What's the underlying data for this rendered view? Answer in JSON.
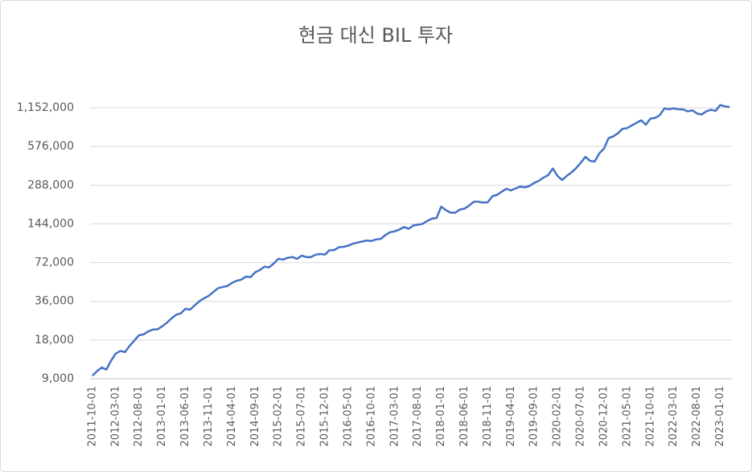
{
  "chart_data": {
    "type": "line",
    "title": "현금 대신 BIL 투자",
    "log_scale": true,
    "log_base": 2,
    "grid": true,
    "color": "#4472c4",
    "categories": [
      "2011-10-01",
      null,
      null,
      null,
      null,
      "2012-03-01",
      null,
      null,
      null,
      null,
      "2012-08-01",
      null,
      null,
      null,
      null,
      "2013-01-01",
      null,
      null,
      null,
      null,
      "2013-06-01",
      null,
      null,
      null,
      null,
      "2013-11-01",
      null,
      null,
      null,
      null,
      "2014-04-01",
      null,
      null,
      null,
      null,
      "2014-09-01",
      null,
      null,
      null,
      null,
      "2015-02-01",
      null,
      null,
      null,
      null,
      "2015-07-01",
      null,
      null,
      null,
      null,
      "2015-12-01",
      null,
      null,
      null,
      null,
      "2016-05-01",
      null,
      null,
      null,
      null,
      "2016-10-01",
      null,
      null,
      null,
      null,
      "2017-03-01",
      null,
      null,
      null,
      null,
      "2017-08-01",
      null,
      null,
      null,
      null,
      "2018-01-01",
      null,
      null,
      null,
      null,
      "2018-06-01",
      null,
      null,
      null,
      null,
      "2018-11-01",
      null,
      null,
      null,
      null,
      "2019-04-01",
      null,
      null,
      null,
      null,
      "2019-09-01",
      null,
      null,
      null,
      null,
      "2020-02-01",
      null,
      null,
      null,
      null,
      "2020-07-01",
      null,
      null,
      null,
      null,
      "2020-12-01",
      null,
      null,
      null,
      null,
      "2021-05-01",
      null,
      null,
      null,
      null,
      "2021-10-01",
      null,
      null,
      null,
      null,
      "2022-03-01",
      null,
      null,
      null,
      null,
      "2022-08-01",
      null,
      null,
      null,
      null,
      "2023-01-01",
      null,
      null
    ],
    "values": [
      9500,
      10300,
      11000,
      10600,
      12400,
      14100,
      14800,
      14500,
      16200,
      17800,
      19600,
      19900,
      21000,
      21700,
      21800,
      23000,
      24500,
      26500,
      28300,
      29000,
      31500,
      31000,
      33500,
      36000,
      38000,
      39700,
      42500,
      45500,
      46500,
      47300,
      50000,
      52000,
      53000,
      56000,
      55500,
      60500,
      63000,
      67000,
      66000,
      71000,
      77000,
      76000,
      78500,
      79500,
      77000,
      81500,
      79500,
      79500,
      83000,
      84000,
      83000,
      90000,
      90000,
      95000,
      95500,
      97500,
      101000,
      103000,
      105000,
      107000,
      106000,
      109000,
      110000,
      118000,
      124000,
      126000,
      130000,
      136000,
      132000,
      140000,
      142000,
      144000,
      152000,
      158000,
      160000,
      196000,
      184000,
      176000,
      176000,
      186000,
      189000,
      200000,
      214000,
      214000,
      211000,
      212000,
      236000,
      242000,
      256000,
      270000,
      262000,
      272000,
      281000,
      277000,
      284000,
      300000,
      312000,
      330000,
      345000,
      388000,
      340000,
      316000,
      340000,
      362000,
      390000,
      430000,
      478000,
      445000,
      440000,
      510000,
      555000,
      670000,
      690000,
      730000,
      790000,
      800000,
      840000,
      880000,
      920000,
      850000,
      950000,
      960000,
      1010000,
      1140000,
      1120000,
      1140000,
      1120000,
      1120000,
      1080000,
      1100000,
      1040000,
      1020000,
      1080000,
      1110000,
      1090000,
      1210000,
      1180000,
      1170000
    ],
    "ylim": [
      9000,
      1152000
    ],
    "yticks": [
      {
        "value": 9000,
        "label": "9,000"
      },
      {
        "value": 18000,
        "label": "18,000"
      },
      {
        "value": 36000,
        "label": "36,000"
      },
      {
        "value": 72000,
        "label": "72,000"
      },
      {
        "value": 144000,
        "label": "144,000"
      },
      {
        "value": 288000,
        "label": "288,000"
      },
      {
        "value": 576000,
        "label": "576,000"
      },
      {
        "value": 1152000,
        "label": "1,152,000"
      }
    ]
  }
}
